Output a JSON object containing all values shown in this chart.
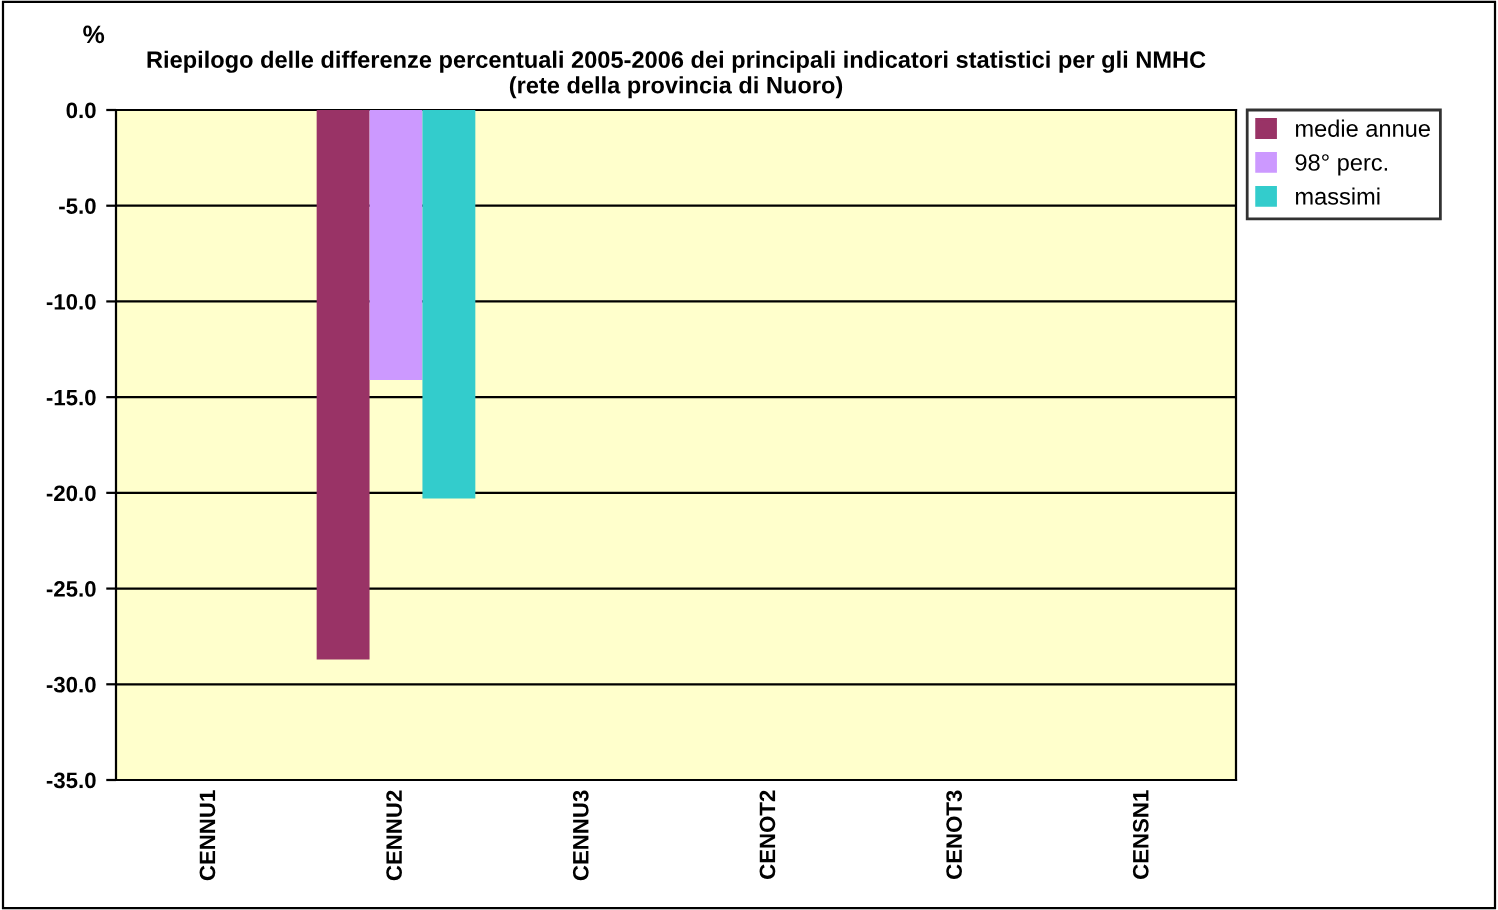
{
  "chart_data": {
    "type": "bar",
    "title": "Riepilogo delle differenze percentuali 2005-2006 dei principali indicatori statistici per gli NMHC\n(rete della provincia di Nuoro)",
    "ylabel": "%",
    "categories": [
      "CENNU1",
      "CENNU2",
      "CENNU3",
      "CENOT2",
      "CENOT3",
      "CENSN1"
    ],
    "series": [
      {
        "name": "medie annue",
        "color": "#993366",
        "values": [
          null,
          -28.7,
          null,
          null,
          null,
          null
        ]
      },
      {
        "name": "98° perc.",
        "color": "#cc99ff",
        "values": [
          null,
          -14.1,
          null,
          null,
          null,
          null
        ]
      },
      {
        "name": "massimi",
        "color": "#33cccc",
        "values": [
          null,
          -20.3,
          null,
          null,
          null,
          null
        ]
      }
    ],
    "ylim": [
      -35,
      0
    ],
    "yticks": [
      {
        "value": 0,
        "label": "0.0"
      },
      {
        "value": -5,
        "label": "-5.0"
      },
      {
        "value": -10,
        "label": "-10.0"
      },
      {
        "value": -15,
        "label": "-15.0"
      },
      {
        "value": -20,
        "label": "-20.0"
      },
      {
        "value": -25,
        "label": "-25.0"
      },
      {
        "value": -30,
        "label": "-30.0"
      },
      {
        "value": -35,
        "label": "-35.0"
      }
    ],
    "grid": "y",
    "legend": "right"
  }
}
